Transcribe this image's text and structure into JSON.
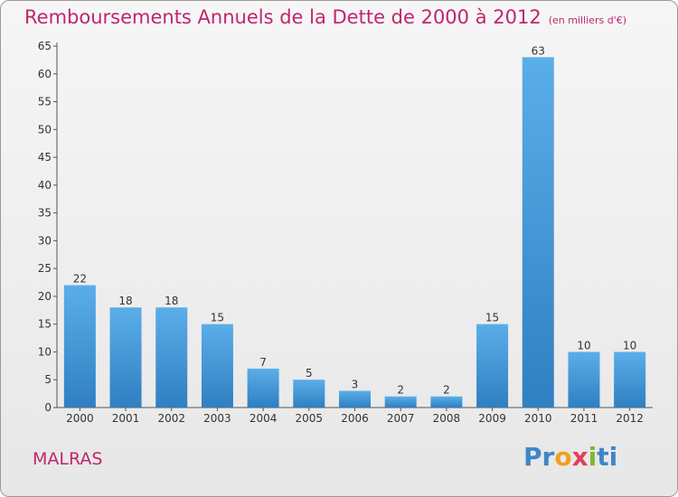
{
  "title": "Remboursements Annuels de la Dette de 2000 à 2012",
  "unit": "(en milliers d'€)",
  "commune": "MALRAS",
  "logo": {
    "text": "Proxiti",
    "parts": [
      "Pr",
      "o",
      "x",
      "i",
      "ti"
    ]
  },
  "colors": {
    "accent": "#c0266d",
    "bar": "#3a8fd6"
  },
  "chart_data": {
    "type": "bar",
    "title": "Remboursements Annuels de la Dette de 2000 à 2012",
    "xlabel": "",
    "ylabel": "",
    "categories": [
      "2000",
      "2001",
      "2002",
      "2003",
      "2004",
      "2005",
      "2006",
      "2007",
      "2008",
      "2009",
      "2010",
      "2011",
      "2012"
    ],
    "values": [
      22,
      18,
      18,
      15,
      7,
      5,
      3,
      2,
      2,
      15,
      63,
      10,
      10
    ],
    "ylim": [
      0,
      65
    ],
    "yticks": [
      0,
      5,
      10,
      15,
      20,
      25,
      30,
      35,
      40,
      45,
      50,
      55,
      60,
      65
    ],
    "grid": false,
    "legend": "none"
  }
}
